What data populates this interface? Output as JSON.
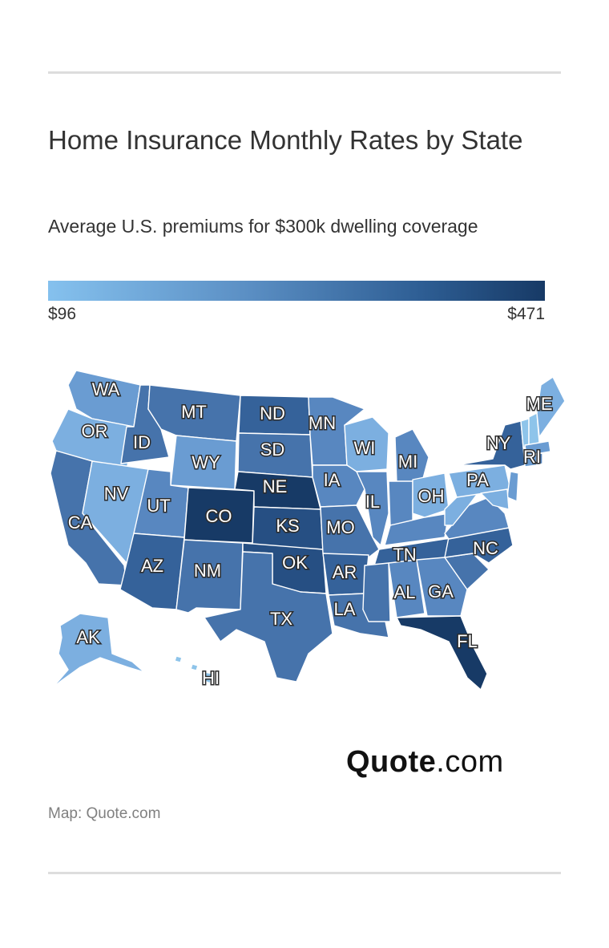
{
  "header": {
    "title": "Home Insurance Monthly Rates by State",
    "subtitle": "Average U.S. premiums for $300k dwelling coverage"
  },
  "legend": {
    "min_label": "$96",
    "max_label": "$471",
    "color_low": "#85c1ee",
    "color_high": "#173a66"
  },
  "map": {
    "state_labels": [
      "WA",
      "OR",
      "CA",
      "ID",
      "NV",
      "MT",
      "WY",
      "UT",
      "AZ",
      "CO",
      "NM",
      "ND",
      "SD",
      "NE",
      "KS",
      "OK",
      "TX",
      "MN",
      "IA",
      "MO",
      "AR",
      "LA",
      "WI",
      "IL",
      "MI",
      "OH",
      "TN",
      "AL",
      "GA",
      "FL",
      "NC",
      "PA",
      "NY",
      "ME",
      "RI",
      "AK",
      "HI"
    ],
    "colors": {
      "lightest": "#8ec4ea",
      "light": "#7cafe0",
      "mid_light": "#6a9cd2",
      "mid": "#5887c0",
      "mid_dark": "#4673ab",
      "dark": "#35629a",
      "darker": "#264f83",
      "darkest": "#173a66"
    }
  },
  "brand": {
    "name_bold": "Quote",
    "name_rest": ".com"
  },
  "footer": {
    "credit": "Map: Quote.com"
  }
}
